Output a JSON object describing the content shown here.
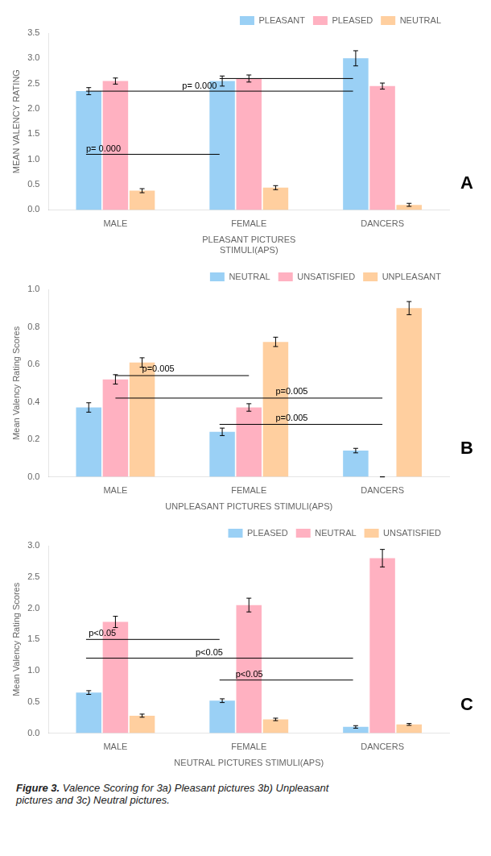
{
  "chart_data": [
    {
      "type": "bar",
      "xlabel": "PLEASANT PICTURES\nSTIMULI(APS)",
      "ylabel": "MEAN VALENCY RATING",
      "categories": [
        "MALE",
        "FEMALE",
        "DANCERS"
      ],
      "series": [
        {
          "name": "PLEASANT",
          "values": [
            2.35,
            2.55,
            3.0
          ],
          "errors": [
            0.07,
            0.1,
            0.15
          ]
        },
        {
          "name": "PLEASED",
          "values": [
            2.55,
            2.6,
            2.45
          ],
          "errors": [
            0.06,
            0.07,
            0.06
          ]
        },
        {
          "name": "NEUTRAL",
          "values": [
            0.38,
            0.44,
            0.1
          ],
          "errors": [
            0.04,
            0.04,
            0.03
          ]
        }
      ],
      "ylim": [
        0.0,
        3.5
      ],
      "yticks": [
        {
          "value": 0.0,
          "label": "0.0"
        },
        0.5,
        {
          "value": 1.0,
          "label": "1.0"
        },
        1.5,
        {
          "value": 2.0,
          "label": "2.0"
        },
        2.5,
        {
          "value": 3.0,
          "label": "3.0"
        },
        3.5
      ],
      "grid": false,
      "legend": "upper right",
      "sig_lines": [
        {
          "y": 1.1,
          "x1": -0.22,
          "x2": 0.78,
          "label": "p= 0.000",
          "label_x": -0.22,
          "label_y": 1.15
        },
        {
          "y": 1.1,
          "x1": -0.22,
          "x2": -0.22
        },
        {
          "y": 2.35,
          "x1": -0.22,
          "x2": 1.78,
          "label": "p= 0.000",
          "label_x": 0.5,
          "label_y": 2.4
        },
        {
          "y": 2.6,
          "x1": 0.78,
          "x2": 1.78
        }
      ],
      "panel_label": "A"
    },
    {
      "type": "bar",
      "xlabel": "UNPLEASANT PICTURES STIMULI(APS)",
      "ylabel": "Mean Valency Rating Scores",
      "categories": [
        "MALE",
        "FEMALE",
        "DANCERS"
      ],
      "series": [
        {
          "name": "NEUTRAL",
          "values": [
            0.37,
            0.24,
            0.14
          ],
          "errors": [
            0.025,
            0.02,
            0.012
          ]
        },
        {
          "name": "UNSATISFIED",
          "values": [
            0.52,
            0.37,
            0.0
          ],
          "errors": [
            0.025,
            0.02,
            0.0
          ]
        },
        {
          "name": "UNPLEASANT",
          "values": [
            0.61,
            0.72,
            0.9
          ],
          "errors": [
            0.025,
            0.025,
            0.035
          ]
        }
      ],
      "ylim": [
        0.0,
        1.0
      ],
      "yticks": [
        {
          "value": 0.0,
          "label": "0.0"
        },
        0.2,
        0.4,
        0.6,
        0.8,
        {
          "value": 1.0,
          "label": "1.0"
        }
      ],
      "grid": false,
      "legend": "upper right",
      "sig_lines": [
        {
          "y": 0.54,
          "x1": 0.0,
          "x2": 1.0,
          "label": "p=0.005",
          "label_x": 0.2,
          "label_y": 0.56
        },
        {
          "y": 0.42,
          "x1": 0.0,
          "x2": 2.0,
          "label": "p=0.005",
          "label_x": 1.2,
          "label_y": 0.44
        },
        {
          "y": 0.28,
          "x1": 0.78,
          "x2": 2.0,
          "label": "p=0.005",
          "label_x": 1.2,
          "label_y": 0.3
        }
      ],
      "panel_label": "B"
    },
    {
      "type": "bar",
      "xlabel": "NEUTRAL PICTURES STIMULI(APS)",
      "ylabel": "Mean Valency Rating Scores",
      "categories": [
        "MALE",
        "FEMALE",
        "DANCERS"
      ],
      "series": [
        {
          "name": "PLEASED",
          "values": [
            0.65,
            0.52,
            0.1
          ],
          "errors": [
            0.03,
            0.03,
            0.02
          ]
        },
        {
          "name": "NEUTRAL",
          "values": [
            1.78,
            2.05,
            2.8
          ],
          "errors": [
            0.09,
            0.11,
            0.14
          ]
        },
        {
          "name": "UNSATISFIED",
          "values": [
            0.28,
            0.22,
            0.14
          ],
          "errors": [
            0.025,
            0.02,
            0.015
          ]
        }
      ],
      "ylim": [
        0.0,
        3.0
      ],
      "yticks": [
        {
          "value": 0.0,
          "label": "0.0"
        },
        0.5,
        {
          "value": 1.0,
          "label": "1.0"
        },
        1.5,
        {
          "value": 2.0,
          "label": "2.0"
        },
        2.5,
        {
          "value": 3.0,
          "label": "3.0"
        }
      ],
      "grid": false,
      "legend": "upper right",
      "sig_lines": [
        {
          "y": 1.5,
          "x1": -0.22,
          "x2": 0.78,
          "label": "p<0.05",
          "label_x": -0.2,
          "label_y": 1.55
        },
        {
          "y": 1.2,
          "x1": -0.22,
          "x2": 1.78,
          "label": "p<0.05",
          "label_x": 0.6,
          "label_y": 1.25
        },
        {
          "y": 0.85,
          "x1": 0.78,
          "x2": 1.78,
          "label": "p<0.05",
          "label_x": 0.9,
          "label_y": 0.9
        }
      ],
      "panel_label": "C"
    }
  ],
  "caption": {
    "bold": "Figure 3.",
    "text": " Valence Scoring for 3a) Pleasant pictures 3b) Unpleasant\npictures and 3c) Neutral pictures."
  }
}
